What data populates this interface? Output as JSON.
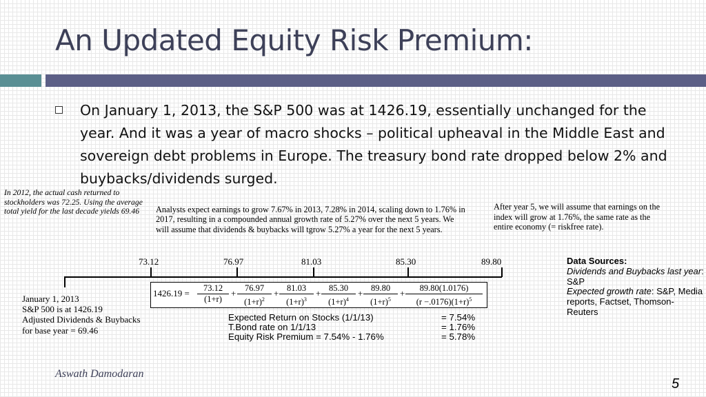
{
  "slide": {
    "title": "An Updated Equity Risk Premium:",
    "bullet": "On January 1, 2013, the S&P 500 was at 1426.19, essentially unchanged for the year. And it was a year of macro shocks – political upheaval in the Middle East and sovereign debt problems in Europe. The treasury bond rate dropped below 2% and buybacks/dividends surged.",
    "author": "Aswath Damodaran",
    "page_number": "5",
    "accent_colors": {
      "bar": "#5c5f86",
      "teal": "#5a8f94",
      "title": "#3d4058"
    }
  },
  "figure": {
    "note_2012": "In 2012, the actual cash returned to stockholders was 72.25. Using the average total yield for the last decade yields 69.46",
    "note_analysts": "Analysts expect earnings to grow 7.67% in 2013, 7.28% in 2014, scaling down to 1.76% in 2017, resulting in a compounded annual growth rate of 5.27% over the next 5 years. We will assume that dividends & buybacks will tgrow 5.27% a year for the next 5 years.",
    "note_after": "After year 5, we will assume that earnings on the index will grow at 1.76%, the same rate as the entire economy (= riskfree rate).",
    "timeline_values": [
      "73.12",
      "76.97",
      "81.03",
      "85.30",
      "89.80"
    ],
    "jan_note": {
      "line1": "January 1, 2013",
      "line2": "S&P 500 is at 1426.19",
      "line3": "Adjusted Dividends & Buybacks",
      "line4": "for base year = 69.46"
    },
    "formula": {
      "lhs": "1426.19 =",
      "terms": [
        {
          "num": "73.12",
          "den": "(1+r)"
        },
        {
          "num": "76.97",
          "den": "(1+r)",
          "exp": "2"
        },
        {
          "num": "81.03",
          "den": "(1+r)",
          "exp": "3"
        },
        {
          "num": "85.30",
          "den": "(1+r)",
          "exp": "4"
        },
        {
          "num": "89.80",
          "den": "(1+r)",
          "exp": "5"
        },
        {
          "num": "89.80(1.0176)",
          "den": "(r −.0176)(1+r)",
          "exp": "5"
        }
      ],
      "plus": "+"
    },
    "results": [
      {
        "label": "Expected Return on Stocks (1/1/13)",
        "value": "= 7.54%"
      },
      {
        "label": "T.Bond rate on 1/1/13",
        "value": "= 1.76%"
      },
      {
        "label": "Equity Risk Premium = 7.54% - 1.76%",
        "value": "= 5.78%"
      }
    ],
    "sources": {
      "heading": "Data Sources:",
      "item1_label": "Dividends and Buybacks last year",
      "item1_value": ": S&P",
      "item2_label": "Expected growth rate",
      "item2_value": ": S&P, Media reports, Factset, Thomson-Reuters"
    }
  }
}
